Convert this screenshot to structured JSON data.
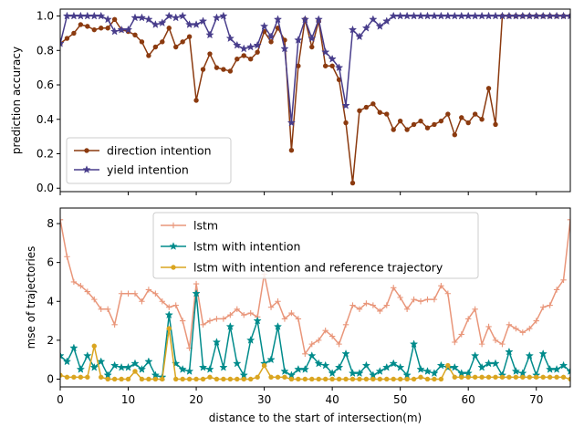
{
  "chart_data": [
    {
      "type": "line",
      "title": "",
      "xlabel": "",
      "ylabel": "prediction accuracy",
      "xlim": [
        0,
        75
      ],
      "ylim": [
        -0.02,
        1.04
      ],
      "yticks": [
        0.0,
        0.2,
        0.4,
        0.6,
        0.8,
        1.0
      ],
      "ytick_labels": [
        "0.0",
        "0.2",
        "0.4",
        "0.6",
        "0.8",
        "1.0"
      ],
      "legend_position": "lower-left",
      "series": [
        {
          "name": "direction intention",
          "color": "#8B3A0F",
          "marker": "circle",
          "x": [
            0,
            1,
            2,
            3,
            4,
            5,
            6,
            7,
            8,
            9,
            10,
            11,
            12,
            13,
            14,
            15,
            16,
            17,
            18,
            19,
            20,
            21,
            22,
            23,
            24,
            25,
            26,
            27,
            28,
            29,
            30,
            31,
            32,
            33,
            34,
            35,
            36,
            37,
            38,
            39,
            40,
            41,
            42,
            43,
            44,
            45,
            46,
            47,
            48,
            49,
            50,
            51,
            52,
            53,
            54,
            55,
            56,
            57,
            58,
            59,
            60,
            61,
            62,
            63,
            64,
            65,
            66,
            67,
            68,
            69,
            70,
            71,
            72,
            73,
            74,
            75
          ],
          "values": [
            0.84,
            0.87,
            0.9,
            0.95,
            0.94,
            0.92,
            0.93,
            0.93,
            0.98,
            0.92,
            0.91,
            0.89,
            0.85,
            0.77,
            0.82,
            0.85,
            0.93,
            0.82,
            0.85,
            0.88,
            0.51,
            0.69,
            0.78,
            0.7,
            0.69,
            0.68,
            0.75,
            0.77,
            0.75,
            0.79,
            0.91,
            0.85,
            0.93,
            0.86,
            0.22,
            0.71,
            0.98,
            0.82,
            0.97,
            0.71,
            0.71,
            0.63,
            0.38,
            0.03,
            0.45,
            0.47,
            0.49,
            0.44,
            0.43,
            0.34,
            0.39,
            0.34,
            0.37,
            0.39,
            0.35,
            0.37,
            0.39,
            0.43,
            0.31,
            0.41,
            0.38,
            0.43,
            0.4,
            0.58,
            0.37,
            1.0,
            1.0,
            1.0,
            1.0,
            1.0,
            1.0,
            1.0,
            1.0,
            1.0,
            1.0,
            1.0
          ]
        },
        {
          "name": "yield intention",
          "color": "#483D8B",
          "marker": "star",
          "x": [
            0,
            1,
            2,
            3,
            4,
            5,
            6,
            7,
            8,
            9,
            10,
            11,
            12,
            13,
            14,
            15,
            16,
            17,
            18,
            19,
            20,
            21,
            22,
            23,
            24,
            25,
            26,
            27,
            28,
            29,
            30,
            31,
            32,
            33,
            34,
            35,
            36,
            37,
            38,
            39,
            40,
            41,
            42,
            43,
            44,
            45,
            46,
            47,
            48,
            49,
            50,
            51,
            52,
            53,
            54,
            55,
            56,
            57,
            58,
            59,
            60,
            61,
            62,
            63,
            64,
            65,
            66,
            67,
            68,
            69,
            70,
            71,
            72,
            73,
            74,
            75
          ],
          "values": [
            0.84,
            1.0,
            1.0,
            1.0,
            1.0,
            1.0,
            1.0,
            0.98,
            0.91,
            0.92,
            0.92,
            0.99,
            0.99,
            0.98,
            0.95,
            0.96,
            1.0,
            0.99,
            1.0,
            0.95,
            0.95,
            0.97,
            0.89,
            0.99,
            1.0,
            0.87,
            0.83,
            0.81,
            0.82,
            0.83,
            0.94,
            0.88,
            0.98,
            0.81,
            0.38,
            0.86,
            0.98,
            0.87,
            0.98,
            0.79,
            0.75,
            0.7,
            0.48,
            0.92,
            0.88,
            0.93,
            0.98,
            0.94,
            0.97,
            1.0,
            1.0,
            1.0,
            1.0,
            1.0,
            1.0,
            1.0,
            1.0,
            1.0,
            1.0,
            1.0,
            1.0,
            1.0,
            1.0,
            1.0,
            1.0,
            1.0,
            1.0,
            1.0,
            1.0,
            1.0,
            1.0,
            1.0,
            1.0,
            1.0,
            1.0,
            1.0
          ]
        }
      ]
    },
    {
      "type": "line",
      "title": "",
      "xlabel": "distance to the start of intersection(m)",
      "ylabel": "mse of trajectories",
      "xlim": [
        0,
        75
      ],
      "ylim": [
        -0.4,
        8.8
      ],
      "xticks": [
        0,
        10,
        20,
        30,
        40,
        50,
        60,
        70
      ],
      "xtick_labels": [
        "0",
        "10",
        "20",
        "30",
        "40",
        "50",
        "60",
        "70"
      ],
      "yticks": [
        0,
        2,
        4,
        6,
        8
      ],
      "ytick_labels": [
        "0",
        "2",
        "4",
        "6",
        "8"
      ],
      "legend_position": "upper-center",
      "series": [
        {
          "name": "lstm",
          "color": "#E9967A",
          "marker": "plus",
          "x": [
            0,
            1,
            2,
            3,
            4,
            5,
            6,
            7,
            8,
            9,
            10,
            11,
            12,
            13,
            14,
            15,
            16,
            17,
            18,
            19,
            20,
            21,
            22,
            23,
            24,
            25,
            26,
            27,
            28,
            29,
            30,
            31,
            32,
            33,
            34,
            35,
            36,
            37,
            38,
            39,
            40,
            41,
            42,
            43,
            44,
            45,
            46,
            47,
            48,
            49,
            50,
            51,
            52,
            53,
            54,
            55,
            56,
            57,
            58,
            59,
            60,
            61,
            62,
            63,
            64,
            65,
            66,
            67,
            68,
            69,
            70,
            71,
            72,
            73,
            74,
            75
          ],
          "values": [
            8.2,
            6.3,
            5.0,
            4.8,
            4.5,
            4.1,
            3.6,
            3.6,
            2.8,
            4.4,
            4.4,
            4.4,
            4.0,
            4.6,
            4.4,
            4.0,
            3.7,
            3.8,
            3.0,
            1.6,
            4.9,
            2.8,
            3.0,
            3.1,
            3.1,
            3.3,
            3.6,
            3.3,
            3.4,
            3.2,
            5.4,
            3.7,
            4.0,
            3.1,
            3.4,
            3.1,
            1.3,
            1.8,
            2.0,
            2.5,
            2.2,
            1.8,
            2.8,
            3.8,
            3.6,
            3.9,
            3.8,
            3.5,
            3.8,
            4.7,
            4.2,
            3.6,
            4.1,
            4.0,
            4.1,
            4.1,
            4.8,
            4.4,
            1.9,
            2.3,
            3.1,
            3.6,
            1.8,
            2.7,
            2.0,
            1.8,
            2.8,
            2.6,
            2.4,
            2.6,
            3.0,
            3.7,
            3.8,
            4.6,
            5.1,
            8.2
          ]
        },
        {
          "name": "lstm with intention",
          "color": "#008B8B",
          "marker": "star",
          "x": [
            0,
            1,
            2,
            3,
            4,
            5,
            6,
            7,
            8,
            9,
            10,
            11,
            12,
            13,
            14,
            15,
            16,
            17,
            18,
            19,
            20,
            21,
            22,
            23,
            24,
            25,
            26,
            27,
            28,
            29,
            30,
            31,
            32,
            33,
            34,
            35,
            36,
            37,
            38,
            39,
            40,
            41,
            42,
            43,
            44,
            45,
            46,
            47,
            48,
            49,
            50,
            51,
            52,
            53,
            54,
            55,
            56,
            57,
            58,
            59,
            60,
            61,
            62,
            63,
            64,
            65,
            66,
            67,
            68,
            69,
            70,
            71,
            72,
            73,
            74,
            75
          ],
          "values": [
            1.2,
            0.9,
            1.6,
            0.5,
            1.2,
            0.6,
            0.9,
            0.2,
            0.7,
            0.6,
            0.6,
            0.8,
            0.5,
            0.9,
            0.2,
            0.1,
            3.3,
            0.8,
            0.5,
            0.4,
            4.4,
            0.6,
            0.5,
            1.9,
            0.6,
            2.7,
            0.8,
            0.2,
            2.0,
            3.0,
            0.8,
            1.0,
            2.7,
            0.4,
            0.2,
            0.5,
            0.5,
            1.2,
            0.8,
            0.7,
            0.3,
            0.6,
            1.3,
            0.3,
            0.3,
            0.7,
            0.2,
            0.4,
            0.6,
            0.8,
            0.6,
            0.2,
            1.8,
            0.5,
            0.4,
            0.3,
            0.7,
            0.6,
            0.6,
            0.3,
            0.3,
            1.2,
            0.6,
            0.8,
            0.8,
            0.2,
            1.4,
            0.4,
            0.3,
            1.2,
            0.2,
            1.3,
            0.5,
            0.5,
            0.7,
            0.4
          ]
        },
        {
          "name": "lstm with intention and reference trajectory",
          "color": "#DAA520",
          "marker": "circle",
          "x": [
            0,
            1,
            2,
            3,
            4,
            5,
            6,
            7,
            8,
            9,
            10,
            11,
            12,
            13,
            14,
            15,
            16,
            17,
            18,
            19,
            20,
            21,
            22,
            23,
            24,
            25,
            26,
            27,
            28,
            29,
            30,
            31,
            32,
            33,
            34,
            35,
            36,
            37,
            38,
            39,
            40,
            41,
            42,
            43,
            44,
            45,
            46,
            47,
            48,
            49,
            50,
            51,
            52,
            53,
            54,
            55,
            56,
            57,
            58,
            59,
            60,
            61,
            62,
            63,
            64,
            65,
            66,
            67,
            68,
            69,
            70,
            71,
            72,
            73,
            74,
            75
          ],
          "values": [
            0.2,
            0.1,
            0.1,
            0.1,
            0.1,
            1.7,
            0.1,
            0.0,
            0.0,
            0.0,
            0.0,
            0.4,
            0.0,
            0.0,
            0.0,
            0.0,
            2.6,
            0.0,
            0.0,
            0.0,
            0.0,
            0.0,
            0.1,
            0.0,
            0.0,
            0.0,
            0.0,
            0.0,
            0.0,
            0.1,
            0.7,
            0.1,
            0.1,
            0.1,
            0.0,
            0.0,
            0.0,
            0.0,
            0.0,
            0.0,
            0.0,
            0.0,
            0.0,
            0.0,
            0.0,
            0.0,
            0.0,
            0.0,
            0.0,
            0.0,
            0.0,
            0.0,
            0.0,
            0.1,
            0.0,
            0.0,
            0.0,
            0.7,
            0.1,
            0.1,
            0.1,
            0.1,
            0.1,
            0.1,
            0.1,
            0.1,
            0.1,
            0.1,
            0.1,
            0.1,
            0.1,
            0.1,
            0.1,
            0.1,
            0.1,
            0.0
          ]
        }
      ]
    }
  ]
}
